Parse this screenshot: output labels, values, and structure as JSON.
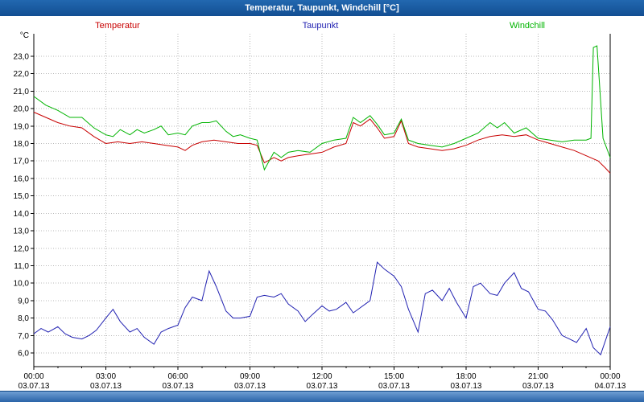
{
  "title_bar": {
    "title": "Temperatur, Taupunkt, Windchill [°C]"
  },
  "chart_data": {
    "type": "line",
    "title": "Temperatur, Taupunkt, Windchill [°C]",
    "y_unit": "°C",
    "ylim": [
      6,
      23
    ],
    "grid": true,
    "legend_position": "top",
    "y_ticks": [
      23,
      22,
      21,
      20,
      19,
      18,
      17,
      16,
      15,
      14,
      13,
      12,
      11,
      10,
      9,
      8,
      7,
      6
    ],
    "x_ticks": [
      {
        "hour": 0,
        "time": "00:00",
        "date": "03.07.13"
      },
      {
        "hour": 3,
        "time": "03:00",
        "date": "03.07.13"
      },
      {
        "hour": 6,
        "time": "06:00",
        "date": "03.07.13"
      },
      {
        "hour": 9,
        "time": "09:00",
        "date": "03.07.13"
      },
      {
        "hour": 12,
        "time": "12:00",
        "date": "03.07.13"
      },
      {
        "hour": 15,
        "time": "15:00",
        "date": "03.07.13"
      },
      {
        "hour": 18,
        "time": "18:00",
        "date": "03.07.13"
      },
      {
        "hour": 21,
        "time": "21:00",
        "date": "03.07.13"
      },
      {
        "hour": 24,
        "time": "00:00",
        "date": "04.07.13"
      }
    ],
    "series": [
      {
        "name": "Temperatur",
        "color": "#c80000",
        "points": [
          [
            0,
            19.8
          ],
          [
            0.5,
            19.5
          ],
          [
            1,
            19.2
          ],
          [
            1.5,
            19.0
          ],
          [
            2,
            18.9
          ],
          [
            2.5,
            18.4
          ],
          [
            3,
            18.0
          ],
          [
            3.5,
            18.1
          ],
          [
            4,
            18.0
          ],
          [
            4.5,
            18.1
          ],
          [
            5,
            18.0
          ],
          [
            5.5,
            17.9
          ],
          [
            6,
            17.8
          ],
          [
            6.3,
            17.6
          ],
          [
            6.6,
            17.9
          ],
          [
            7,
            18.1
          ],
          [
            7.5,
            18.2
          ],
          [
            8,
            18.1
          ],
          [
            8.5,
            18.0
          ],
          [
            9,
            18.0
          ],
          [
            9.3,
            17.9
          ],
          [
            9.6,
            16.9
          ],
          [
            10,
            17.2
          ],
          [
            10.3,
            17.0
          ],
          [
            10.6,
            17.2
          ],
          [
            11,
            17.3
          ],
          [
            11.5,
            17.4
          ],
          [
            12,
            17.5
          ],
          [
            12.5,
            17.8
          ],
          [
            13,
            18.0
          ],
          [
            13.3,
            19.2
          ],
          [
            13.6,
            19.0
          ],
          [
            14,
            19.4
          ],
          [
            14.3,
            18.9
          ],
          [
            14.6,
            18.3
          ],
          [
            15,
            18.4
          ],
          [
            15.3,
            19.3
          ],
          [
            15.6,
            18.0
          ],
          [
            16,
            17.8
          ],
          [
            16.5,
            17.7
          ],
          [
            17,
            17.6
          ],
          [
            17.5,
            17.7
          ],
          [
            18,
            17.9
          ],
          [
            18.5,
            18.2
          ],
          [
            19,
            18.4
          ],
          [
            19.5,
            18.5
          ],
          [
            20,
            18.4
          ],
          [
            20.5,
            18.5
          ],
          [
            21,
            18.2
          ],
          [
            21.5,
            18.0
          ],
          [
            22,
            17.8
          ],
          [
            22.5,
            17.6
          ],
          [
            23,
            17.3
          ],
          [
            23.5,
            17.0
          ],
          [
            23.8,
            16.6
          ],
          [
            24,
            16.3
          ]
        ]
      },
      {
        "name": "Taupunkt",
        "color": "#2222b2",
        "points": [
          [
            0,
            7.1
          ],
          [
            0.3,
            7.4
          ],
          [
            0.6,
            7.2
          ],
          [
            1,
            7.5
          ],
          [
            1.3,
            7.1
          ],
          [
            1.6,
            6.9
          ],
          [
            2,
            6.8
          ],
          [
            2.3,
            7.0
          ],
          [
            2.6,
            7.3
          ],
          [
            3,
            8.0
          ],
          [
            3.3,
            8.5
          ],
          [
            3.6,
            7.8
          ],
          [
            4,
            7.2
          ],
          [
            4.3,
            7.4
          ],
          [
            4.6,
            6.9
          ],
          [
            5,
            6.5
          ],
          [
            5.3,
            7.2
          ],
          [
            5.6,
            7.4
          ],
          [
            6,
            7.6
          ],
          [
            6.3,
            8.6
          ],
          [
            6.6,
            9.2
          ],
          [
            7,
            9.0
          ],
          [
            7.3,
            10.7
          ],
          [
            7.6,
            9.8
          ],
          [
            8,
            8.4
          ],
          [
            8.3,
            8.0
          ],
          [
            8.6,
            8.0
          ],
          [
            9,
            8.1
          ],
          [
            9.3,
            9.2
          ],
          [
            9.6,
            9.3
          ],
          [
            10,
            9.2
          ],
          [
            10.3,
            9.4
          ],
          [
            10.6,
            8.8
          ],
          [
            11,
            8.4
          ],
          [
            11.3,
            7.8
          ],
          [
            11.6,
            8.2
          ],
          [
            12,
            8.7
          ],
          [
            12.3,
            8.4
          ],
          [
            12.6,
            8.5
          ],
          [
            13,
            8.9
          ],
          [
            13.3,
            8.3
          ],
          [
            13.6,
            8.6
          ],
          [
            14,
            9.0
          ],
          [
            14.3,
            11.2
          ],
          [
            14.6,
            10.8
          ],
          [
            15,
            10.4
          ],
          [
            15.3,
            9.8
          ],
          [
            15.6,
            8.5
          ],
          [
            16,
            7.2
          ],
          [
            16.3,
            9.4
          ],
          [
            16.6,
            9.6
          ],
          [
            17,
            9.0
          ],
          [
            17.3,
            9.7
          ],
          [
            17.6,
            8.9
          ],
          [
            18,
            8.0
          ],
          [
            18.3,
            9.8
          ],
          [
            18.6,
            10.0
          ],
          [
            19,
            9.4
          ],
          [
            19.3,
            9.3
          ],
          [
            19.6,
            10.0
          ],
          [
            20,
            10.6
          ],
          [
            20.3,
            9.7
          ],
          [
            20.6,
            9.5
          ],
          [
            21,
            8.5
          ],
          [
            21.3,
            8.4
          ],
          [
            21.6,
            7.9
          ],
          [
            22,
            7.0
          ],
          [
            22.3,
            6.8
          ],
          [
            22.6,
            6.6
          ],
          [
            23,
            7.4
          ],
          [
            23.3,
            6.3
          ],
          [
            23.6,
            5.9
          ],
          [
            24,
            7.5
          ]
        ]
      },
      {
        "name": "Windchill",
        "color": "#00b400",
        "points": [
          [
            0,
            20.7
          ],
          [
            0.5,
            20.2
          ],
          [
            1,
            19.9
          ],
          [
            1.5,
            19.5
          ],
          [
            2,
            19.5
          ],
          [
            2.5,
            18.9
          ],
          [
            3,
            18.5
          ],
          [
            3.3,
            18.4
          ],
          [
            3.6,
            18.8
          ],
          [
            4,
            18.5
          ],
          [
            4.3,
            18.8
          ],
          [
            4.6,
            18.6
          ],
          [
            5,
            18.8
          ],
          [
            5.3,
            19.0
          ],
          [
            5.6,
            18.5
          ],
          [
            6,
            18.6
          ],
          [
            6.3,
            18.5
          ],
          [
            6.6,
            19.0
          ],
          [
            7,
            19.2
          ],
          [
            7.3,
            19.2
          ],
          [
            7.6,
            19.3
          ],
          [
            8,
            18.7
          ],
          [
            8.3,
            18.4
          ],
          [
            8.6,
            18.5
          ],
          [
            9,
            18.3
          ],
          [
            9.3,
            18.2
          ],
          [
            9.6,
            16.5
          ],
          [
            10,
            17.5
          ],
          [
            10.3,
            17.2
          ],
          [
            10.6,
            17.5
          ],
          [
            11,
            17.6
          ],
          [
            11.5,
            17.5
          ],
          [
            12,
            18.0
          ],
          [
            12.5,
            18.2
          ],
          [
            13,
            18.3
          ],
          [
            13.3,
            19.5
          ],
          [
            13.6,
            19.2
          ],
          [
            14,
            19.6
          ],
          [
            14.3,
            19.1
          ],
          [
            14.6,
            18.5
          ],
          [
            15,
            18.6
          ],
          [
            15.3,
            19.4
          ],
          [
            15.6,
            18.2
          ],
          [
            16,
            18.0
          ],
          [
            16.5,
            17.9
          ],
          [
            17,
            17.8
          ],
          [
            17.5,
            18.0
          ],
          [
            18,
            18.3
          ],
          [
            18.5,
            18.6
          ],
          [
            19,
            19.2
          ],
          [
            19.3,
            18.9
          ],
          [
            19.6,
            19.2
          ],
          [
            20,
            18.6
          ],
          [
            20.5,
            18.9
          ],
          [
            21,
            18.3
          ],
          [
            21.5,
            18.2
          ],
          [
            22,
            18.1
          ],
          [
            22.5,
            18.2
          ],
          [
            23,
            18.2
          ],
          [
            23.2,
            18.3
          ],
          [
            23.3,
            23.5
          ],
          [
            23.45,
            23.6
          ],
          [
            23.55,
            21.5
          ],
          [
            23.7,
            18.3
          ],
          [
            24,
            17.2
          ]
        ]
      }
    ]
  }
}
